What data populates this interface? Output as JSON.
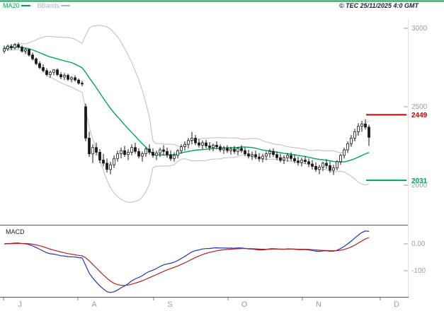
{
  "header": {
    "copyright": "© TEC 25/11/2025 4:0 GMT"
  },
  "legend": [
    {
      "label": "MA20",
      "color": "#00A651"
    },
    {
      "label": "BBands",
      "color": "#B5B5B5"
    }
  ],
  "panel_labels": {
    "macd": "MACD"
  },
  "axis": {
    "price_ticks": [
      {
        "label": "3000",
        "value": 3000
      },
      {
        "label": "2500",
        "value": 2500
      },
      {
        "label": "2000",
        "value": 2000
      }
    ],
    "macd_ticks": [
      {
        "label": "0.00",
        "value": 0
      },
      {
        "label": "-100",
        "value": -100
      }
    ],
    "months": [
      "J",
      "A",
      "S",
      "O",
      "N",
      "D"
    ]
  },
  "colors": {
    "candle": "#1A1A1A",
    "bands": "#BDBDBD",
    "ma": "#00A651",
    "macd_line": "#2233BB",
    "macd_signal": "#B22222",
    "frame": "#555555",
    "axis_text": "#9E9E9E"
  },
  "chart_data": {
    "type": "candlestick",
    "title": "",
    "xlabel": "",
    "ylabel": "",
    "price_ylim": [
      2000,
      3000
    ],
    "macd_ylim": [
      -170,
      65
    ],
    "levels": [
      {
        "label": "2449",
        "value": 2449,
        "color": "#CC0000"
      },
      {
        "label": "2031",
        "value": 2031,
        "color": "#00A651"
      }
    ],
    "overlays": [
      "MA20",
      "BBands"
    ],
    "lower_panel": "MACD",
    "candles": [
      [
        2855,
        2890,
        2840,
        2870
      ],
      [
        2870,
        2895,
        2855,
        2885
      ],
      [
        2885,
        2900,
        2860,
        2875
      ],
      [
        2875,
        2905,
        2865,
        2895
      ],
      [
        2895,
        2910,
        2870,
        2880
      ],
      [
        2880,
        2890,
        2845,
        2855
      ],
      [
        2855,
        2875,
        2835,
        2865
      ],
      [
        2865,
        2870,
        2820,
        2830
      ],
      [
        2830,
        2845,
        2795,
        2805
      ],
      [
        2805,
        2815,
        2765,
        2775
      ],
      [
        2775,
        2790,
        2740,
        2750
      ],
      [
        2750,
        2770,
        2720,
        2730
      ],
      [
        2730,
        2745,
        2695,
        2705
      ],
      [
        2705,
        2730,
        2685,
        2720
      ],
      [
        2720,
        2740,
        2700,
        2735
      ],
      [
        2735,
        2745,
        2695,
        2705
      ],
      [
        2705,
        2720,
        2675,
        2690
      ],
      [
        2690,
        2715,
        2670,
        2700
      ],
      [
        2700,
        2710,
        2665,
        2675
      ],
      [
        2675,
        2695,
        2655,
        2685
      ],
      [
        2685,
        2700,
        2660,
        2670
      ],
      [
        2670,
        2680,
        2640,
        2650
      ],
      [
        2650,
        2665,
        2630,
        2645
      ],
      [
        2500,
        2520,
        2280,
        2300
      ],
      [
        2300,
        2340,
        2180,
        2200
      ],
      [
        2200,
        2260,
        2140,
        2240
      ],
      [
        2240,
        2270,
        2190,
        2210
      ],
      [
        2210,
        2230,
        2140,
        2160
      ],
      [
        2160,
        2200,
        2120,
        2140
      ],
      [
        2140,
        2170,
        2080,
        2100
      ],
      [
        2100,
        2150,
        2070,
        2130
      ],
      [
        2130,
        2190,
        2110,
        2170
      ],
      [
        2170,
        2220,
        2150,
        2200
      ],
      [
        2200,
        2240,
        2170,
        2220
      ],
      [
        2220,
        2250,
        2180,
        2195
      ],
      [
        2195,
        2230,
        2160,
        2210
      ],
      [
        2210,
        2260,
        2190,
        2240
      ],
      [
        2240,
        2270,
        2200,
        2215
      ],
      [
        2215,
        2235,
        2170,
        2185
      ],
      [
        2185,
        2215,
        2150,
        2200
      ],
      [
        2200,
        2245,
        2180,
        2230
      ],
      [
        2230,
        2260,
        2195,
        2210
      ],
      [
        2210,
        2235,
        2175,
        2190
      ],
      [
        2190,
        2220,
        2160,
        2205
      ],
      [
        2205,
        2240,
        2180,
        2225
      ],
      [
        2225,
        2255,
        2190,
        2215
      ],
      [
        2215,
        2240,
        2175,
        2195
      ],
      [
        2195,
        2220,
        2155,
        2170
      ],
      [
        2170,
        2210,
        2150,
        2190
      ],
      [
        2190,
        2230,
        2170,
        2220
      ],
      [
        2220,
        2260,
        2200,
        2245
      ],
      [
        2245,
        2280,
        2220,
        2260
      ],
      [
        2260,
        2300,
        2235,
        2285
      ],
      [
        2285,
        2340,
        2260,
        2300
      ],
      [
        2300,
        2320,
        2255,
        2270
      ],
      [
        2270,
        2295,
        2240,
        2255
      ],
      [
        2255,
        2285,
        2230,
        2270
      ],
      [
        2270,
        2290,
        2235,
        2250
      ],
      [
        2250,
        2275,
        2220,
        2240
      ],
      [
        2240,
        2265,
        2215,
        2255
      ],
      [
        2255,
        2280,
        2230,
        2245
      ],
      [
        2245,
        2260,
        2210,
        2225
      ],
      [
        2225,
        2250,
        2200,
        2235
      ],
      [
        2235,
        2255,
        2205,
        2220
      ],
      [
        2220,
        2245,
        2195,
        2230
      ],
      [
        2230,
        2250,
        2200,
        2215
      ],
      [
        2215,
        2245,
        2190,
        2235
      ],
      [
        2235,
        2255,
        2205,
        2220
      ],
      [
        2220,
        2240,
        2185,
        2200
      ],
      [
        2200,
        2225,
        2170,
        2185
      ],
      [
        2185,
        2215,
        2160,
        2195
      ],
      [
        2195,
        2220,
        2165,
        2180
      ],
      [
        2180,
        2205,
        2150,
        2170
      ],
      [
        2170,
        2200,
        2145,
        2185
      ],
      [
        2185,
        2215,
        2160,
        2200
      ],
      [
        2200,
        2230,
        2175,
        2215
      ],
      [
        2215,
        2235,
        2180,
        2195
      ],
      [
        2195,
        2215,
        2160,
        2175
      ],
      [
        2175,
        2200,
        2145,
        2160
      ],
      [
        2160,
        2190,
        2135,
        2175
      ],
      [
        2175,
        2205,
        2150,
        2190
      ],
      [
        2190,
        2210,
        2155,
        2170
      ],
      [
        2170,
        2195,
        2140,
        2155
      ],
      [
        2155,
        2180,
        2125,
        2145
      ],
      [
        2145,
        2175,
        2120,
        2160
      ],
      [
        2160,
        2185,
        2135,
        2150
      ],
      [
        2150,
        2170,
        2115,
        2135
      ],
      [
        2135,
        2160,
        2100,
        2120
      ],
      [
        2120,
        2145,
        2085,
        2100
      ],
      [
        2100,
        2130,
        2070,
        2115
      ],
      [
        2115,
        2150,
        2090,
        2140
      ],
      [
        2140,
        2165,
        2105,
        2125
      ],
      [
        2125,
        2150,
        2080,
        2095
      ],
      [
        2095,
        2130,
        2065,
        2110
      ],
      [
        2110,
        2160,
        2095,
        2150
      ],
      [
        2150,
        2200,
        2130,
        2190
      ],
      [
        2190,
        2240,
        2170,
        2225
      ],
      [
        2225,
        2280,
        2205,
        2265
      ],
      [
        2265,
        2320,
        2245,
        2300
      ],
      [
        2300,
        2360,
        2280,
        2340
      ],
      [
        2340,
        2395,
        2315,
        2375
      ],
      [
        2375,
        2410,
        2340,
        2390
      ],
      [
        2390,
        2420,
        2355,
        2370
      ],
      [
        2370,
        2385,
        2250,
        2305
      ]
    ]
  }
}
